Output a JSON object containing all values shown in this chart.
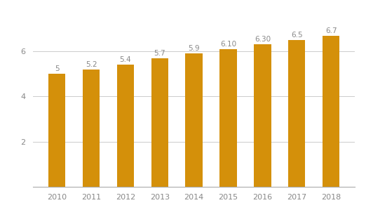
{
  "years": [
    "2010",
    "2011",
    "2012",
    "2013",
    "2014",
    "2015",
    "2016",
    "2017",
    "2018"
  ],
  "values": [
    5.0,
    5.2,
    5.4,
    5.7,
    5.9,
    6.1,
    6.3,
    6.5,
    6.7
  ],
  "labels": [
    "5",
    "5.2",
    "5.4",
    "5.7",
    "5.9",
    "6.10",
    "6.30",
    "6.5",
    "6.7"
  ],
  "bar_color": "#D4900A",
  "background_color": "#ffffff",
  "grid_color": "#cccccc",
  "yticks": [
    2,
    4,
    6
  ],
  "ylim": [
    0,
    7.6
  ],
  "label_fontsize": 7.5,
  "tick_fontsize": 8,
  "label_color": "#888888"
}
